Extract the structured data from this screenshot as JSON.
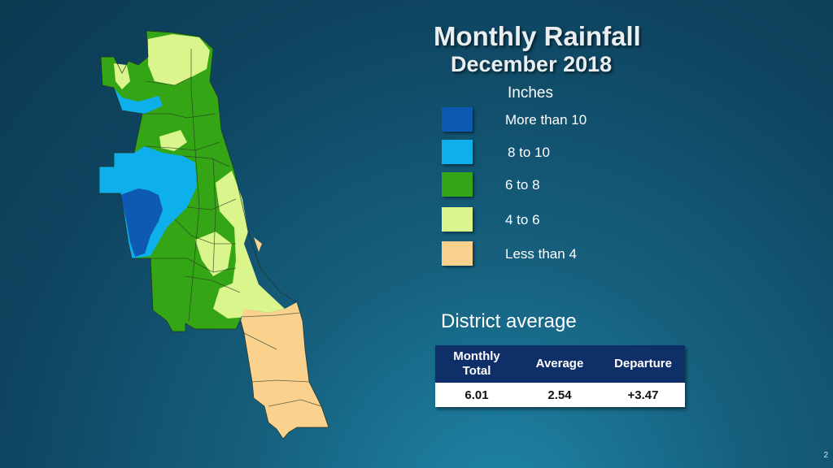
{
  "title": "Monthly Rainfall",
  "subtitle": "December 2018",
  "legend": {
    "heading": "Inches",
    "items": [
      {
        "label": "More than 10",
        "color": "#0d59b3"
      },
      {
        "label": "8 to 10",
        "color": "#0db0ea"
      },
      {
        "label": "6 to 8",
        "color": "#34a514"
      },
      {
        "label": "4 to 6",
        "color": "#d9f58b"
      },
      {
        "label": "Less than 4",
        "color": "#fad28d"
      }
    ]
  },
  "district_average": {
    "heading": "District average",
    "columns": [
      "Monthly Total",
      "Average",
      "Departure"
    ],
    "values": [
      "6.01",
      "2.54",
      "+3.47"
    ]
  },
  "page_number": "2"
}
